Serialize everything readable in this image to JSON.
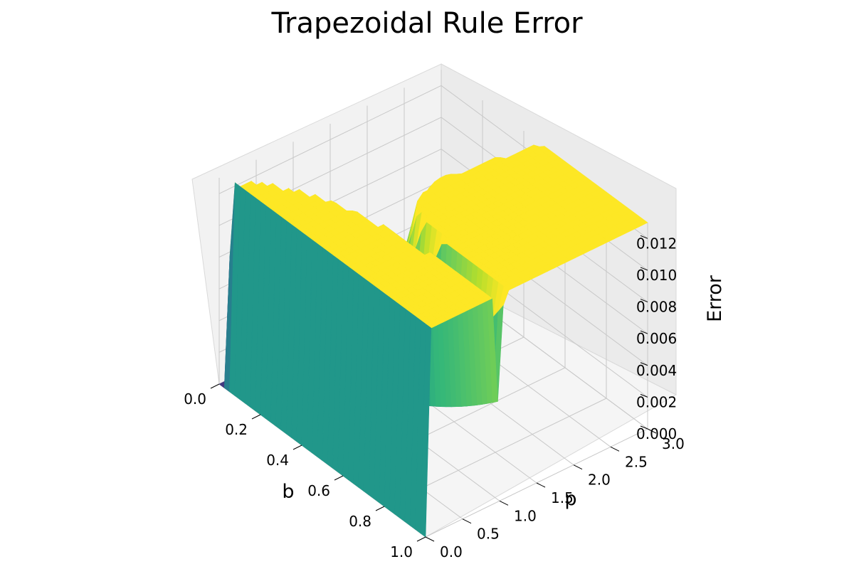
{
  "chart_data": {
    "type": "surface3d",
    "title": "Trapezoidal Rule Error",
    "xlabel": "b",
    "ylabel": "p",
    "zlabel": "Error",
    "xlim": [
      0,
      1
    ],
    "ylim": [
      0,
      3
    ],
    "zlim": [
      0,
      0.013
    ],
    "x_ticks": [
      "0.0",
      "0.2",
      "0.4",
      "0.6",
      "0.8",
      "1.0"
    ],
    "y_ticks": [
      "0.0",
      "0.5",
      "1.0",
      "1.5",
      "2.0",
      "2.5",
      "3.0"
    ],
    "z_ticks": [
      "0.000",
      "0.002",
      "0.004",
      "0.006",
      "0.008",
      "0.010",
      "0.012"
    ],
    "colormap": "viridis",
    "grid": true,
    "surface_description": "Error of trapezoidal rule; zero at p=1, peak ~0.0123 at b=0.5 near p=1, rising at large p",
    "sample_points": [
      {
        "b": 0.0,
        "p": 0.0,
        "error": 0.0
      },
      {
        "b": 0.5,
        "p": 0.9,
        "error": 0.0123
      },
      {
        "b": 1.0,
        "p": 0.0,
        "error": 0.0078
      },
      {
        "b": 1.0,
        "p": 1.0,
        "error": 0.0
      },
      {
        "b": 1.0,
        "p": 3.0,
        "error": 0.0022
      },
      {
        "b": 0.0,
        "p": 3.0,
        "error": 0.0
      }
    ]
  }
}
